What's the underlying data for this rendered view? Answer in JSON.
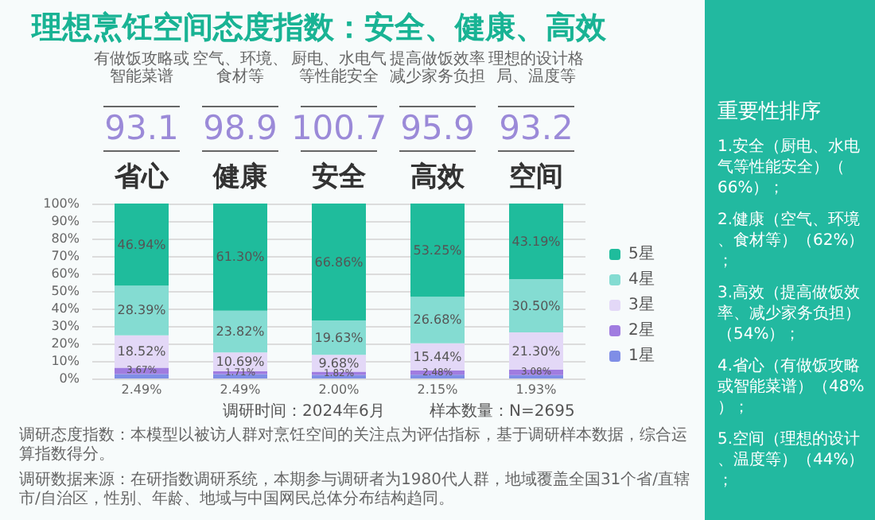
{
  "chart_data": {
    "type": "bar",
    "stacked": true,
    "title": "理想烹饪空间态度指数：安全、健康、高效",
    "categories": [
      "省心",
      "健康",
      "安全",
      "高效",
      "空间"
    ],
    "series": [
      {
        "name": "1星",
        "color": "#7f8ee6",
        "values": [
          2.49,
          2.49,
          2.0,
          2.15,
          1.93
        ],
        "value_labels": [
          "2.49%",
          "2.49%",
          "2.00%",
          "2.15%",
          "1.93%"
        ]
      },
      {
        "name": "2星",
        "color": "#a07ce0",
        "values": [
          3.67,
          1.71,
          1.82,
          2.48,
          3.08
        ],
        "value_labels": [
          "3.67%",
          "1.71%",
          "1.82%",
          "2.48%",
          "3.08%"
        ]
      },
      {
        "name": "3星",
        "color": "#e3d8f7",
        "values": [
          18.52,
          10.69,
          9.68,
          15.44,
          21.3
        ],
        "value_labels": [
          "18.52%",
          "10.69%",
          "9.68%",
          "15.44%",
          "21.30%"
        ]
      },
      {
        "name": "4星",
        "color": "#84dcd2",
        "values": [
          28.39,
          23.82,
          19.63,
          26.68,
          30.5
        ],
        "value_labels": [
          "28.39%",
          "23.82%",
          "19.63%",
          "26.68%",
          "30.50%"
        ]
      },
      {
        "name": "5星",
        "color": "#1fbc9c",
        "values": [
          46.94,
          61.3,
          66.86,
          53.25,
          43.19
        ],
        "value_labels": [
          "46.94%",
          "61.30%",
          "66.86%",
          "53.25%",
          "43.19%"
        ]
      }
    ],
    "ylim": [
      0,
      100
    ],
    "yticks": [
      {
        "value": 0,
        "label": "0%"
      },
      {
        "value": 10,
        "label": "10%"
      },
      {
        "value": 20,
        "label": "20%"
      },
      {
        "value": 30,
        "label": "30%"
      },
      {
        "value": 40,
        "label": "40%"
      },
      {
        "value": 50,
        "label": "50%"
      },
      {
        "value": 60,
        "label": "60%"
      },
      {
        "value": 70,
        "label": "70%"
      },
      {
        "value": 80,
        "label": "80%"
      },
      {
        "value": 90,
        "label": "90%"
      },
      {
        "value": 100,
        "label": "100%"
      }
    ],
    "grid": "y",
    "legend": "right",
    "annotations": [
      "有做饭攻略或智能菜谱",
      "93.1",
      "空气、环境、食材等",
      "98.9",
      "厨电、水电气等性能安全",
      "100.7",
      "提高做饭效率减少家务负担",
      "95.9",
      "理想的设计格局、温度等",
      "93.2",
      "重要性排序",
      "1.安全（厨电、水电气等性能安全）（66%）；",
      "2.健康（空气、环境、食材等）（62%）；",
      "3.高效（提高做饭效率、减少家务负担）（54%）；",
      "4.省心（有做饭攻略或智能菜谱）（48%）；",
      "5.空间（理想的设计、温度等）（44%）；",
      "调研时间：2024年6月",
      "样本数量：N=2695",
      "调研态度指数：本模型以被访人群对烹饪空间的关注点为评估指标，基于调研样本数据，综合运算指数得分。",
      "调研数据来源：在研指数调研系统，本期参与调研者为1980代人群，地域覆盖全国31个省/直辖市/自治区，性别、年龄、地域与中国网民总体分布结构趋同。"
    ]
  }
}
